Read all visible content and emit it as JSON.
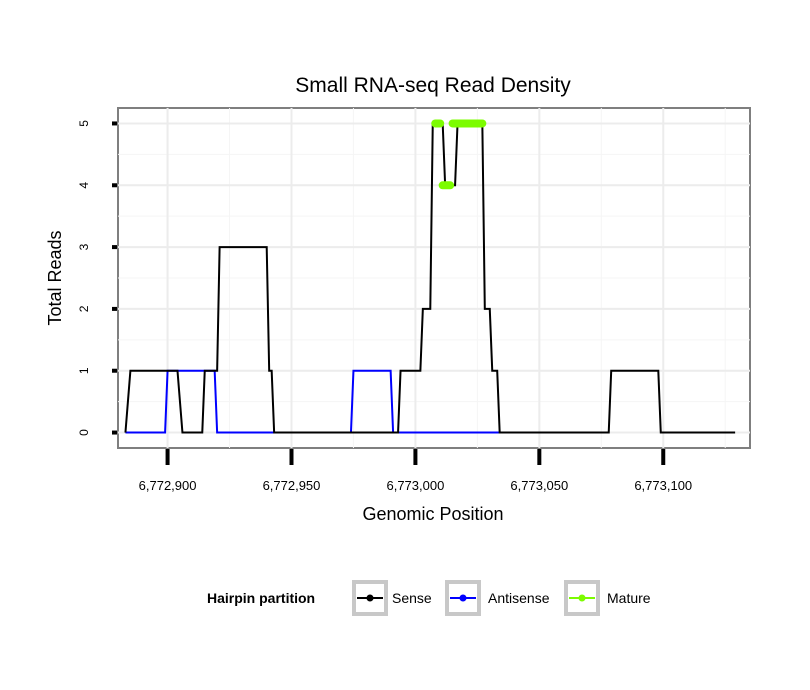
{
  "chart_data": {
    "type": "line",
    "title": "Small RNA-seq Read Density",
    "xlabel": "Genomic Position",
    "ylabel": "Total Reads",
    "xlim": [
      6772880,
      6773135
    ],
    "ylim": [
      -0.25,
      5.25
    ],
    "x_ticks": [
      6772900,
      6772950,
      6773000,
      6773050,
      6773100
    ],
    "x_tick_labels": [
      "6,772,900",
      "6,772,950",
      "6,773,000",
      "6,773,050",
      "6,773,100"
    ],
    "y_ticks": [
      0,
      1,
      2,
      3,
      4,
      5
    ],
    "y_tick_labels": [
      "0",
      "1",
      "2",
      "3",
      "4",
      "5"
    ],
    "grid": true,
    "legend": {
      "title": "Hairpin partition",
      "position": "bottom",
      "entries": [
        "Sense",
        "Antisense",
        "Mature"
      ]
    },
    "series": [
      {
        "name": "Sense",
        "color": "#000000",
        "x": [
          6772883,
          6772885,
          6772904,
          6772906,
          6772914,
          6772915,
          6772920,
          6772921,
          6772940,
          6772941,
          6772942,
          6772943,
          6772993,
          6772994,
          6773002,
          6773003,
          6773006,
          6773007,
          6773009,
          6773010,
          6773011,
          6773012,
          6773013,
          6773016,
          6773017,
          6773018,
          6773027,
          6773028,
          6773030,
          6773031,
          6773033,
          6773034,
          6773078,
          6773079,
          6773098,
          6773099,
          6773129
        ],
        "values": [
          0,
          1,
          1,
          0,
          0,
          1,
          1,
          3,
          3,
          1,
          1,
          0,
          0,
          1,
          1,
          2,
          2,
          5,
          5,
          5,
          5,
          4,
          4,
          4,
          5,
          5,
          5,
          2,
          2,
          1,
          1,
          0,
          0,
          1,
          1,
          0,
          0
        ]
      },
      {
        "name": "Antisense",
        "color": "#0000ff",
        "x": [
          6772883,
          6772899,
          6772900,
          6772919,
          6772920,
          6772974,
          6772975,
          6772990,
          6772991,
          6773078
        ],
        "values": [
          0,
          0,
          1,
          1,
          0,
          0,
          1,
          1,
          0,
          0
        ]
      },
      {
        "name": "Mature",
        "color": "#7cfc00",
        "segments": [
          {
            "x": [
              6773008,
              6773010
            ],
            "values": [
              5,
              5
            ]
          },
          {
            "x": [
              6773011,
              6773014
            ],
            "values": [
              4,
              4
            ]
          },
          {
            "x": [
              6773015,
              6773027
            ],
            "values": [
              5,
              5
            ]
          }
        ]
      }
    ]
  }
}
